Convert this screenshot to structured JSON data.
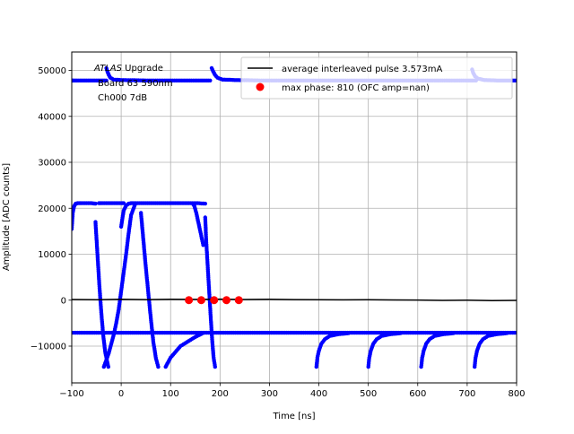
{
  "chart_data": {
    "type": "scatter",
    "xlabel": "Time [ns]",
    "ylabel": "Amplitude [ADC counts]",
    "xlim": [
      -100,
      800
    ],
    "ylim": [
      -18000,
      54000
    ],
    "xticks": [
      -100,
      0,
      100,
      200,
      300,
      400,
      500,
      600,
      700,
      800
    ],
    "yticks": [
      -10000,
      0,
      10000,
      20000,
      30000,
      40000,
      50000
    ],
    "grid": true,
    "legend_position": "top-right",
    "annotation": {
      "line1_italic": "ATLAS",
      "line1_rest": " Upgrade",
      "line2": "Board 63  590nm",
      "line3": "Ch000 7dB"
    },
    "series": [
      {
        "name": "average interleaved pulse 3.573mA",
        "kind": "line",
        "color": "#000000",
        "x": [
          -100,
          -50,
          0,
          50,
          100,
          150,
          200,
          250,
          300,
          350,
          400,
          450,
          500,
          550,
          600,
          650,
          700,
          750,
          800
        ],
        "y": [
          150,
          100,
          180,
          120,
          200,
          160,
          220,
          140,
          180,
          120,
          100,
          60,
          80,
          40,
          20,
          -40,
          0,
          -80,
          -50
        ]
      },
      {
        "name": "max phase: 810 (OFC amp=nan)",
        "kind": "points",
        "color": "#ff0000",
        "x": [
          137,
          162,
          188,
          213,
          238
        ],
        "y": [
          0,
          0,
          0,
          0,
          0
        ]
      },
      {
        "kind": "dense_samples",
        "color": "#0000ff",
        "segments": [
          {
            "x": [
              -100,
              -96,
              -90,
              -80,
              -70,
              -60,
              -50,
              -40,
              -30
            ],
            "y": [
              47800,
              47800,
              47800,
              47800,
              47800,
              47800,
              47800,
              47800,
              47800
            ]
          },
          {
            "x": [
              -30,
              -28,
              -25,
              -22,
              -15,
              0,
              50,
              100,
              150,
              180
            ],
            "y": [
              50500,
              49800,
              49000,
              48400,
              48000,
              47900,
              47800,
              47800,
              47800,
              47800
            ]
          },
          {
            "x": [
              183,
              186,
              190,
              195,
              205,
              230,
              280,
              350,
              450,
              550,
              650,
              700,
              718
            ],
            "y": [
              50500,
              49800,
              49000,
              48400,
              48000,
              47900,
              47800,
              47800,
              47800,
              47800,
              47800,
              47800,
              47800
            ]
          },
          {
            "x": [
              710,
              712,
              716,
              722,
              735,
              760,
              800
            ],
            "y": [
              50200,
              49500,
              48700,
              48200,
              47900,
              47800,
              47800
            ]
          },
          {
            "x": [
              -100,
              -98,
              -95,
              -92,
              -88,
              -80,
              -70,
              -60,
              -52
            ],
            "y": [
              15500,
              19000,
              20500,
              21000,
              21100,
              21100,
              21100,
              21100,
              21000
            ]
          },
          {
            "x": [
              -52,
              -48,
              -44,
              -40,
              -36,
              -32,
              -28,
              -26
            ],
            "y": [
              17000,
              10000,
              3000,
              -3000,
              -8000,
              -11500,
              -13500,
              -14500
            ]
          },
          {
            "x": [
              -45,
              -40,
              -30,
              -20,
              -10,
              0,
              5
            ],
            "y": [
              21100,
              21100,
              21100,
              21100,
              21100,
              21100,
              21100
            ]
          },
          {
            "x": [
              0,
              5,
              10,
              15,
              20,
              25,
              30,
              40,
              60,
              80,
              100,
              120,
              140,
              155,
              170
            ],
            "y": [
              16000,
              19500,
              20600,
              21000,
              21100,
              21100,
              21100,
              21100,
              21100,
              21100,
              21100,
              21100,
              21100,
              21100,
              21000
            ]
          },
          {
            "x": [
              -35,
              -30,
              -25,
              -20,
              -15,
              -10,
              -5,
              0,
              5,
              10,
              15,
              20,
              28
            ],
            "y": [
              -14500,
              -13000,
              -11500,
              -9500,
              -7500,
              -5000,
              -2000,
              2000,
              6000,
              10000,
              14500,
              18500,
              20800
            ]
          },
          {
            "x": [
              40,
              45,
              50,
              55,
              60,
              65,
              70,
              75
            ],
            "y": [
              19000,
              13000,
              7000,
              1500,
              -4000,
              -9000,
              -12500,
              -14500
            ]
          },
          {
            "x": [
              90,
              95,
              100,
              120,
              150,
              165
            ],
            "y": [
              -14500,
              -13500,
              -12500,
              -10000,
              -8000,
              -7200
            ]
          },
          {
            "x": [
              170,
              172,
              175,
              178,
              181,
              184,
              187,
              190
            ],
            "y": [
              18000,
              13000,
              7500,
              2000,
              -3500,
              -8500,
              -12500,
              -14500
            ]
          },
          {
            "x": [
              145,
              148,
              152,
              158,
              166
            ],
            "y": [
              21000,
              20500,
              19000,
              16000,
              12000
            ]
          },
          {
            "x": [
              395,
              397,
              400,
              405,
              412,
              422,
              440,
              460
            ],
            "y": [
              -14500,
              -12500,
              -11000,
              -9500,
              -8500,
              -7800,
              -7400,
              -7200
            ]
          },
          {
            "x": [
              500,
              502,
              505,
              510,
              517,
              527,
              545,
              565
            ],
            "y": [
              -14500,
              -12500,
              -11000,
              -9500,
              -8500,
              -7800,
              -7400,
              -7200
            ]
          },
          {
            "x": [
              607,
              609,
              612,
              617,
              624,
              634,
              652,
              672
            ],
            "y": [
              -14500,
              -12500,
              -11000,
              -9500,
              -8500,
              -7800,
              -7400,
              -7200
            ]
          },
          {
            "x": [
              715,
              717,
              720,
              725,
              732,
              742,
              760,
              780
            ],
            "y": [
              -14500,
              -12500,
              -11000,
              -9500,
              -8500,
              -7800,
              -7400,
              -7200
            ]
          },
          {
            "x": [
              -100,
              -50,
              0,
              50,
              100,
              150,
              200,
              250,
              300,
              350,
              400,
              450,
              500,
              550,
              600,
              650,
              700,
              750,
              800
            ],
            "y": [
              -7100,
              -7100,
              -7100,
              -7100,
              -7100,
              -7100,
              -7100,
              -7100,
              -7100,
              -7100,
              -7100,
              -7100,
              -7100,
              -7100,
              -7100,
              -7100,
              -7100,
              -7100,
              -7100
            ]
          }
        ]
      }
    ]
  }
}
